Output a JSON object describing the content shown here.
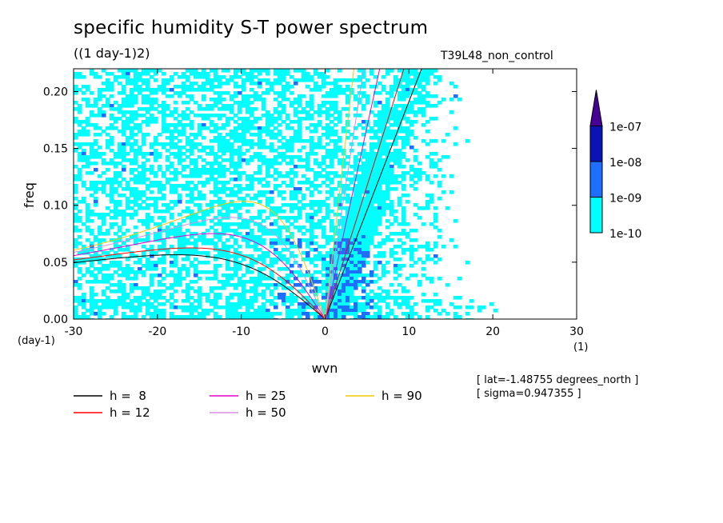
{
  "chart_data": {
    "type": "heatmap",
    "title": "specific humidity S-T power spectrum",
    "units": "((1 day-1)2)",
    "run_label": "T39L48_non_control",
    "xlabel": "wvn",
    "ylabel": "freq",
    "x_unit_label": "(1)",
    "y_unit_label": "(day-1)",
    "xlim": [
      -30,
      30
    ],
    "ylim": [
      0,
      0.22
    ],
    "x_ticks": [
      -30,
      -20,
      -10,
      0,
      10,
      20,
      30
    ],
    "y_ticks": [
      0.0,
      0.05,
      0.1,
      0.15,
      0.2
    ],
    "x_tick_labels": [
      "-30",
      "-20",
      "-10",
      "0",
      "10",
      "20",
      "30"
    ],
    "y_tick_labels": [
      "0.00",
      "0.05",
      "0.10",
      "0.15",
      "0.20"
    ],
    "colorbar": {
      "levels": [
        "1e-10",
        "1e-09",
        "1e-08",
        "1e-07"
      ],
      "colors": [
        "#00ffff",
        "#1e6eff",
        "#0a14b4",
        "#460096"
      ]
    },
    "dispersion_curves": [
      {
        "label": "h =  8",
        "h": 8,
        "color": "#000000"
      },
      {
        "label": "h = 12",
        "h": 12,
        "color": "#ff0000"
      },
      {
        "label": "h = 25",
        "h": 25,
        "color": "#e600c8"
      },
      {
        "label": "h = 50",
        "h": 50,
        "color": "#d88ee0"
      },
      {
        "label": "h = 90",
        "h": 90,
        "color": "#f0c800"
      }
    ],
    "annotations": {
      "lat": "[ lat=-1.48755 degrees_north ]",
      "sigma": "[ sigma=0.947355 ]"
    }
  }
}
